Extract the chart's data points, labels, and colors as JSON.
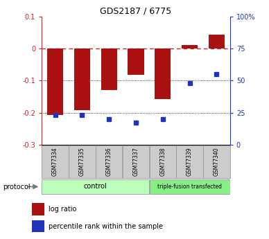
{
  "title": "GDS2187 / 6775",
  "samples": [
    "GSM77334",
    "GSM77335",
    "GSM77336",
    "GSM77337",
    "GSM77338",
    "GSM77339",
    "GSM77340"
  ],
  "log_ratio": [
    -0.207,
    -0.193,
    -0.13,
    -0.082,
    -0.157,
    0.012,
    0.045
  ],
  "percentile_rank_pct": [
    23,
    23,
    20,
    17,
    20,
    48,
    55
  ],
  "bar_color": "#AA1111",
  "dot_color": "#2233BB",
  "zero_line_color": "#CC2222",
  "bg_color": "#FFFFFF",
  "protocol_label": "protocol",
  "group1_label": "control",
  "group2_label": "triple-fusion transfected",
  "group1_n": 4,
  "group1_color": "#BBFFBB",
  "group2_color": "#88EE88",
  "sample_box_color": "#CCCCCC",
  "legend_log": "log ratio",
  "legend_pct": "percentile rank within the sample",
  "ylim_min": -0.3,
  "ylim_max": 0.1,
  "left_yticks": [
    0.1,
    0.0,
    -0.1,
    -0.2,
    -0.3
  ],
  "left_yticklabels": [
    "0.1",
    "0",
    "-0.1",
    "-0.2",
    "-0.3"
  ],
  "right_yticks": [
    0.1,
    0.0,
    -0.1,
    -0.2,
    -0.3
  ],
  "right_yticklabels": [
    "100%",
    "75",
    "50",
    "25",
    "0"
  ]
}
